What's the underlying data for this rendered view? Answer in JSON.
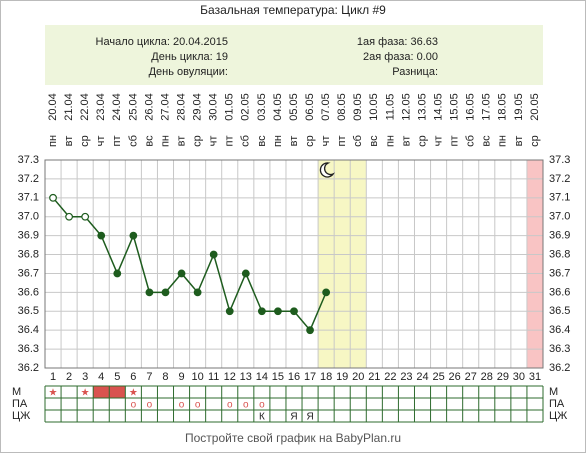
{
  "chart_data": {
    "type": "line",
    "title": "Базальная температура: Цикл #9",
    "info_left": [
      "Начало цикла: 20.04.2015",
      "День цикла: 19",
      "День овуляции:"
    ],
    "info_right": [
      "1ая фаза: 36.63",
      "2ая фаза: 0.00",
      "Разница:"
    ],
    "categories": [
      "20.04",
      "21.04",
      "22.04",
      "23.04",
      "24.04",
      "25.04",
      "26.04",
      "27.04",
      "28.04",
      "29.04",
      "30.04",
      "01.05",
      "02.05",
      "03.05",
      "04.05",
      "05.05",
      "06.05",
      "07.05",
      "08.05",
      "09.05",
      "10.05",
      "11.05",
      "12.05",
      "13.05",
      "14.05",
      "15.05",
      "16.05",
      "17.05",
      "18.05",
      "19.05",
      "20.05"
    ],
    "weekdays": [
      "пн",
      "вт",
      "ср",
      "чт",
      "пт",
      "сб",
      "вс",
      "пн",
      "вт",
      "ср",
      "чт",
      "пт",
      "сб",
      "вс",
      "пн",
      "вт",
      "ср",
      "чт",
      "пт",
      "сб",
      "вс",
      "пн",
      "вт",
      "ср",
      "чт",
      "пт",
      "сб",
      "вс",
      "пн",
      "вт",
      "ср"
    ],
    "days": [
      1,
      2,
      3,
      4,
      5,
      6,
      7,
      8,
      9,
      10,
      11,
      12,
      13,
      14,
      15,
      16,
      17,
      18,
      19,
      20,
      21,
      22,
      23,
      24,
      25,
      26,
      27,
      28,
      29,
      30,
      31
    ],
    "series": [
      {
        "color": "#1e5c1e",
        "values": [
          37.1,
          37.0,
          37.0,
          36.9,
          36.7,
          36.9,
          36.6,
          36.6,
          36.7,
          36.6,
          36.8,
          36.5,
          36.7,
          36.5,
          36.5,
          36.5,
          36.4,
          36.6,
          null,
          null,
          null,
          null,
          null,
          null,
          null,
          null,
          null,
          null,
          null,
          null,
          null
        ]
      }
    ],
    "hollow_days": [
      1,
      2,
      3
    ],
    "ylim": [
      36.2,
      37.3
    ],
    "yticks": [
      36.2,
      36.3,
      36.4,
      36.5,
      36.6,
      36.7,
      36.8,
      36.9,
      {
        "value": 37,
        "label": "37.0"
      },
      37.1,
      37.2,
      37.3
    ],
    "grid": true,
    "highlights": [
      {
        "from": 18,
        "to": 20,
        "color": "#f7f7c4"
      },
      {
        "from": 31,
        "to": 31,
        "color": "#f9c4c4"
      }
    ],
    "moon_day": 18,
    "rows": [
      {
        "label": "М",
        "color": "#d9534f",
        "filled": [
          4,
          5
        ],
        "cells": [
          "★",
          null,
          "★",
          null,
          null,
          "★",
          null,
          null,
          null,
          null,
          null,
          null,
          null,
          null,
          null,
          null,
          null,
          null,
          null,
          null,
          null,
          null,
          null,
          null,
          null,
          null,
          null,
          null,
          null,
          null,
          null
        ]
      },
      {
        "label": "ПА",
        "color": "#d9534f",
        "filled": [],
        "cells": [
          null,
          null,
          null,
          null,
          null,
          "о",
          "о",
          null,
          "о",
          "о",
          null,
          "о",
          "о",
          "о",
          null,
          null,
          null,
          null,
          null,
          null,
          null,
          null,
          null,
          null,
          null,
          null,
          null,
          null,
          null,
          null,
          null
        ]
      },
      {
        "label": "ЦЖ",
        "color": "#222222",
        "filled": [],
        "cells": [
          null,
          null,
          null,
          null,
          null,
          null,
          null,
          null,
          null,
          null,
          null,
          null,
          null,
          "К",
          null,
          "Я",
          "Я",
          null,
          null,
          null,
          null,
          null,
          null,
          null,
          null,
          null,
          null,
          null,
          null,
          null,
          null
        ]
      }
    ],
    "footer": "Постройте свой график на BabyPlan.ru"
  }
}
